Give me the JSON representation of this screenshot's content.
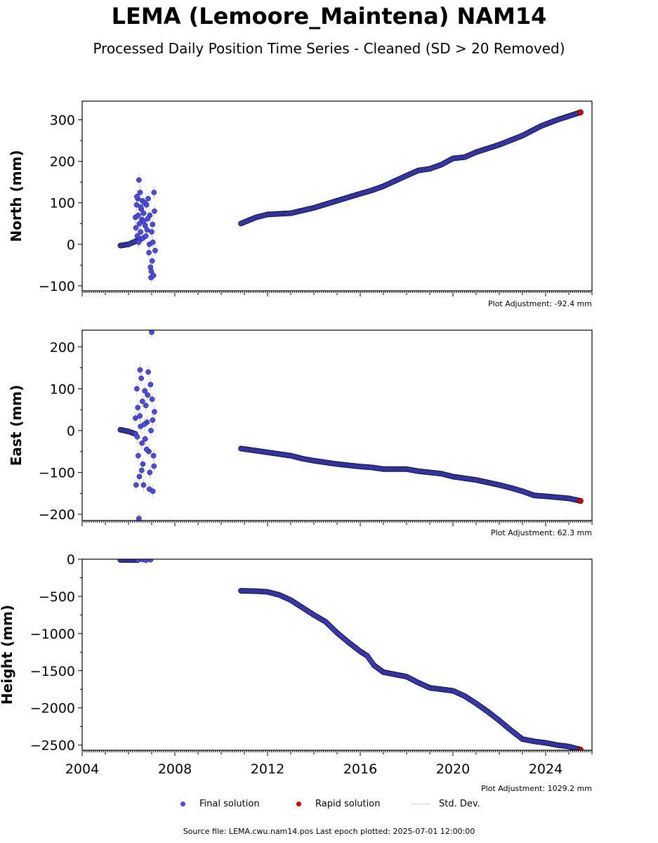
{
  "title": "LEMA (Lemoore_Maintena) NAM14",
  "subtitle": "Processed Daily Position Time Series - Cleaned (SD > 20 Removed)",
  "colors": {
    "final": "#4a4ae8",
    "final_edge": "#16163a",
    "rapid": "#e00000",
    "stddev": "#cccccc"
  },
  "legend": {
    "final": "Final solution",
    "rapid": "Rapid solution",
    "stddev": "Std. Dev."
  },
  "footer": "Source file: LEMA.cwu.nam14.pos  Last epoch plotted: 2025-07-01 12:00:00",
  "chart_data": [
    {
      "type": "scatter",
      "ylabel": "North (mm)",
      "ylim": [
        -112,
        345
      ],
      "yticks": [
        {
          "v": 300,
          "t": "300"
        },
        {
          "v": 200,
          "t": "200"
        },
        {
          "v": 100,
          "t": "100"
        },
        {
          "v": 0,
          "t": "0"
        },
        {
          "v": -100,
          "t": "−100"
        }
      ],
      "adjustment": "Plot Adjustment: -92.4 mm",
      "trend": [
        [
          2005.65,
          -3
        ],
        [
          2006.0,
          0
        ],
        [
          2006.5,
          12
        ],
        [
          2010.85,
          50
        ],
        [
          2011.5,
          65
        ],
        [
          2012.0,
          72
        ],
        [
          2013.0,
          75
        ],
        [
          2014.0,
          88
        ],
        [
          2015.0,
          105
        ],
        [
          2016.0,
          122
        ],
        [
          2016.5,
          130
        ],
        [
          2017.0,
          140
        ],
        [
          2017.7,
          158
        ],
        [
          2018.5,
          178
        ],
        [
          2019.0,
          182
        ],
        [
          2019.5,
          192
        ],
        [
          2020.0,
          207
        ],
        [
          2020.5,
          210
        ],
        [
          2021.0,
          222
        ],
        [
          2022.0,
          240
        ],
        [
          2023.0,
          262
        ],
        [
          2023.8,
          285
        ],
        [
          2024.5,
          300
        ],
        [
          2025.5,
          318
        ]
      ],
      "trend_sd": 3,
      "scatter": [
        [
          2006.3,
          65
        ],
        [
          2006.32,
          40
        ],
        [
          2006.35,
          95
        ],
        [
          2006.38,
          20
        ],
        [
          2006.4,
          110
        ],
        [
          2006.42,
          70
        ],
        [
          2006.45,
          155
        ],
        [
          2006.47,
          50
        ],
        [
          2006.5,
          125
        ],
        [
          2006.52,
          30
        ],
        [
          2006.55,
          85
        ],
        [
          2006.58,
          60
        ],
        [
          2006.6,
          105
        ],
        [
          2006.62,
          15
        ],
        [
          2006.65,
          75
        ],
        [
          2006.7,
          100
        ],
        [
          2006.72,
          45
        ],
        [
          2006.75,
          20
        ],
        [
          2006.8,
          35
        ],
        [
          2006.85,
          110
        ],
        [
          2006.88,
          -20
        ],
        [
          2006.9,
          0
        ],
        [
          2006.92,
          70
        ],
        [
          2006.95,
          -55
        ],
        [
          2006.97,
          -80
        ],
        [
          2007.0,
          30
        ],
        [
          2007.02,
          -40
        ],
        [
          2007.05,
          5
        ],
        [
          2007.08,
          -75
        ],
        [
          2007.1,
          125
        ],
        [
          2007.12,
          80
        ],
        [
          2007.15,
          -15
        ],
        [
          2006.36,
          115
        ],
        [
          2006.44,
          5
        ],
        [
          2006.53,
          90
        ],
        [
          2006.66,
          55
        ],
        [
          2006.78,
          95
        ],
        [
          2006.83,
          62
        ],
        [
          2006.98,
          -65
        ],
        [
          2007.04,
          48
        ]
      ],
      "scatter_sd": 15,
      "rapid": [
        [
          2025.5,
          318
        ]
      ]
    },
    {
      "type": "scatter",
      "ylabel": "East (mm)",
      "ylim": [
        -215,
        240
      ],
      "yticks": [
        {
          "v": 200,
          "t": "200"
        },
        {
          "v": 100,
          "t": "100"
        },
        {
          "v": 0,
          "t": "0"
        },
        {
          "v": -100,
          "t": "−100"
        },
        {
          "v": -200,
          "t": "−200"
        }
      ],
      "adjustment": "Plot Adjustment: 62.3 mm",
      "trend": [
        [
          2005.65,
          2
        ],
        [
          2006.0,
          -2
        ],
        [
          2006.3,
          -8
        ],
        [
          2010.85,
          -43
        ],
        [
          2011.5,
          -48
        ],
        [
          2012.0,
          -52
        ],
        [
          2013.0,
          -60
        ],
        [
          2013.5,
          -67
        ],
        [
          2014.0,
          -72
        ],
        [
          2015.0,
          -80
        ],
        [
          2016.0,
          -86
        ],
        [
          2016.5,
          -88
        ],
        [
          2017.0,
          -92
        ],
        [
          2018.0,
          -92
        ],
        [
          2018.5,
          -97
        ],
        [
          2019.0,
          -100
        ],
        [
          2019.5,
          -103
        ],
        [
          2020.0,
          -110
        ],
        [
          2021.0,
          -118
        ],
        [
          2022.0,
          -130
        ],
        [
          2022.5,
          -137
        ],
        [
          2023.0,
          -145
        ],
        [
          2023.5,
          -155
        ],
        [
          2024.0,
          -157
        ],
        [
          2025.0,
          -162
        ],
        [
          2025.5,
          -168
        ]
      ],
      "trend_sd": 3,
      "scatter": [
        [
          2006.3,
          30
        ],
        [
          2006.33,
          -130
        ],
        [
          2006.36,
          100
        ],
        [
          2006.4,
          55
        ],
        [
          2006.42,
          -60
        ],
        [
          2006.45,
          -210
        ],
        [
          2006.47,
          -110
        ],
        [
          2006.5,
          145
        ],
        [
          2006.52,
          10
        ],
        [
          2006.55,
          125
        ],
        [
          2006.58,
          -30
        ],
        [
          2006.6,
          70
        ],
        [
          2006.62,
          -80
        ],
        [
          2006.65,
          -130
        ],
        [
          2006.7,
          95
        ],
        [
          2006.72,
          -20
        ],
        [
          2006.75,
          60
        ],
        [
          2006.8,
          20
        ],
        [
          2006.85,
          140
        ],
        [
          2006.88,
          -50
        ],
        [
          2006.9,
          -140
        ],
        [
          2006.92,
          -100
        ],
        [
          2006.95,
          110
        ],
        [
          2006.97,
          0
        ],
        [
          2007.0,
          235
        ],
        [
          2007.02,
          75
        ],
        [
          2007.05,
          -145
        ],
        [
          2007.08,
          -60
        ],
        [
          2007.1,
          -85
        ],
        [
          2007.12,
          45
        ],
        [
          2006.38,
          -15
        ],
        [
          2006.49,
          35
        ],
        [
          2006.57,
          -95
        ],
        [
          2006.68,
          15
        ],
        [
          2006.78,
          -45
        ],
        [
          2006.83,
          85
        ],
        [
          2007.04,
          25
        ]
      ],
      "scatter_sd": 15,
      "rapid": [
        [
          2025.5,
          -168
        ]
      ]
    },
    {
      "type": "scatter",
      "ylabel": "Height (mm)",
      "ylim": [
        -2570,
        0
      ],
      "yticks": [
        {
          "v": 0,
          "t": "0"
        },
        {
          "v": -500,
          "t": "−500"
        },
        {
          "v": -1000,
          "t": "−1000"
        },
        {
          "v": -1500,
          "t": "−1500"
        },
        {
          "v": -2000,
          "t": "−2000"
        },
        {
          "v": -2500,
          "t": "−2500"
        }
      ],
      "adjustment": "Plot Adjustment: 1029.2 mm",
      "trend": [
        [
          2005.65,
          -10
        ],
        [
          2006.4,
          -12
        ],
        [
          2010.85,
          -425
        ],
        [
          2011.5,
          -430
        ],
        [
          2012.0,
          -440
        ],
        [
          2012.5,
          -480
        ],
        [
          2013.0,
          -550
        ],
        [
          2013.5,
          -650
        ],
        [
          2014.0,
          -750
        ],
        [
          2014.5,
          -840
        ],
        [
          2015.0,
          -990
        ],
        [
          2015.5,
          -1120
        ],
        [
          2016.0,
          -1240
        ],
        [
          2016.3,
          -1300
        ],
        [
          2016.6,
          -1430
        ],
        [
          2017.0,
          -1520
        ],
        [
          2017.5,
          -1550
        ],
        [
          2018.0,
          -1580
        ],
        [
          2018.5,
          -1660
        ],
        [
          2019.0,
          -1730
        ],
        [
          2020.0,
          -1770
        ],
        [
          2020.5,
          -1840
        ],
        [
          2021.0,
          -1940
        ],
        [
          2021.5,
          -2050
        ],
        [
          2022.0,
          -2170
        ],
        [
          2022.5,
          -2300
        ],
        [
          2023.0,
          -2420
        ],
        [
          2023.5,
          -2450
        ],
        [
          2024.0,
          -2470
        ],
        [
          2024.5,
          -2500
        ],
        [
          2025.0,
          -2520
        ],
        [
          2025.5,
          -2560
        ]
      ],
      "trend_sd": 10,
      "scatter": [
        [
          2006.6,
          -5
        ],
        [
          2006.75,
          -15
        ],
        [
          2006.95,
          -8
        ]
      ],
      "scatter_sd": 20,
      "rapid": [
        [
          2025.5,
          -2565
        ]
      ]
    }
  ],
  "xaxis": {
    "min": 2004,
    "max": 2026,
    "ticks": [
      {
        "v": 2004,
        "t": "2004"
      },
      {
        "v": 2008,
        "t": "2008"
      },
      {
        "v": 2012,
        "t": "2012"
      },
      {
        "v": 2016,
        "t": "2016"
      },
      {
        "v": 2020,
        "t": "2020"
      },
      {
        "v": 2024,
        "t": "2024"
      }
    ]
  }
}
